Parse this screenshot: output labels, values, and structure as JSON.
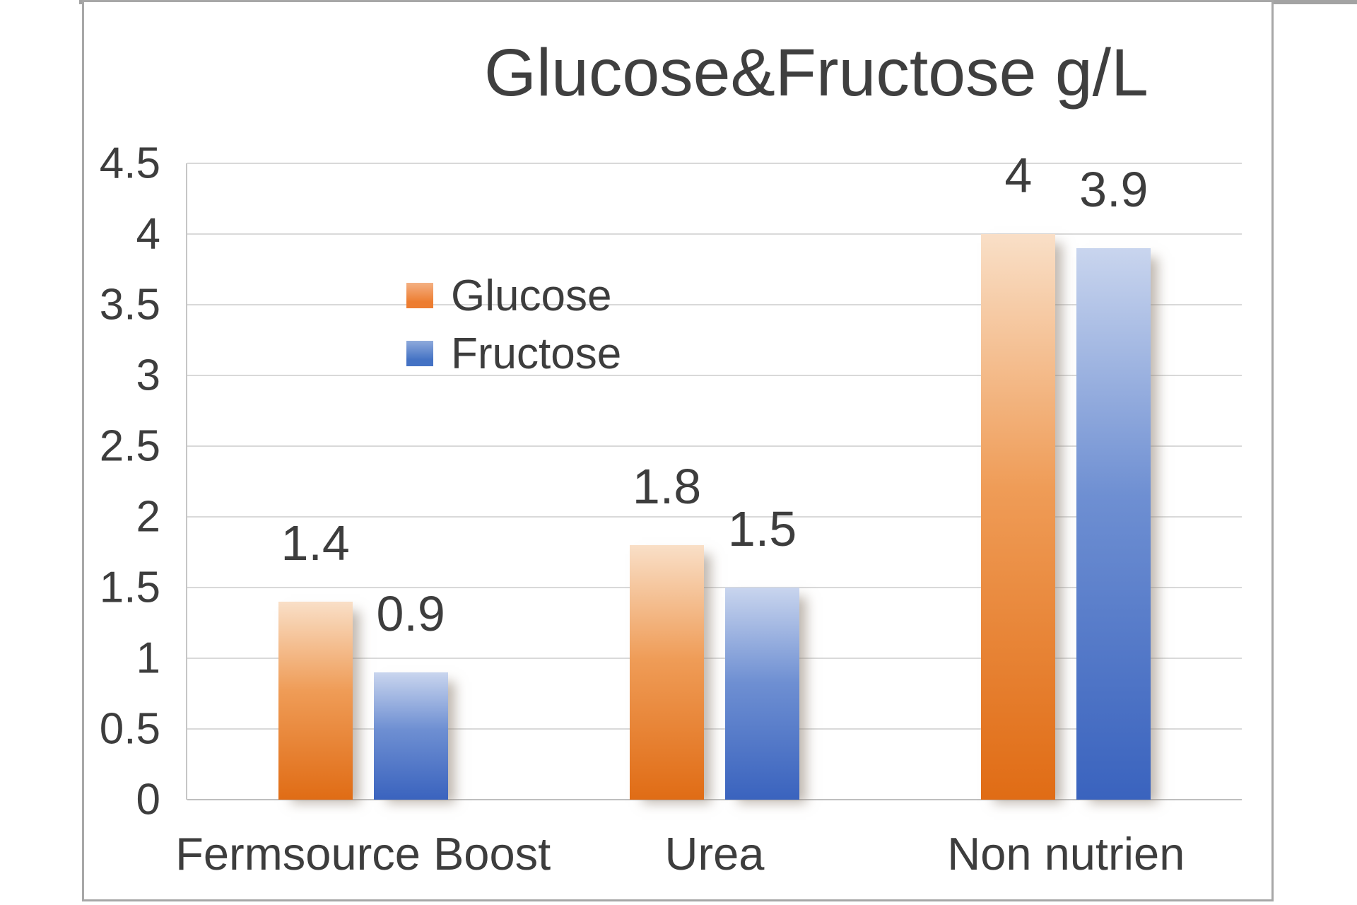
{
  "page": {
    "top_strip_color": "#a3a3a3",
    "frame_border_color": "#a7a7a7",
    "background": "#ffffff"
  },
  "chart_data": {
    "type": "bar",
    "title": "Glucose&Fructose g/L",
    "categories": [
      "Fermsource Boost",
      "Urea",
      "Non nutrien"
    ],
    "series": [
      {
        "name": "Glucose",
        "color": "#ed7d31",
        "gradient": [
          "#f9dfc7",
          "#ef9c57",
          "#e06c15"
        ],
        "values": [
          1.4,
          1.8,
          4
        ],
        "labels": [
          "1.4",
          "1.8",
          "4"
        ]
      },
      {
        "name": "Fructose",
        "color": "#4472c4",
        "gradient": [
          "#c9d5ee",
          "#6e8fd2",
          "#3a63be"
        ],
        "values": [
          0.9,
          1.5,
          3.9
        ],
        "labels": [
          "0.9",
          "1.5",
          "3.9"
        ]
      }
    ],
    "ylim": [
      0,
      4.5
    ],
    "ytick_step": 0.5,
    "yticks": [
      "4.5",
      "4",
      "3.5",
      "3",
      "2.5",
      "2",
      "1.5",
      "1",
      "0.5",
      "0"
    ],
    "grid": true,
    "legend": [
      "Glucose",
      "Fructose"
    ],
    "legend_position": "inside-upper-left",
    "colors": {
      "title_text": "#3f3f3f",
      "label_text": "#3d3d3d",
      "gridline": "#d9d9d9",
      "axis_line": "#bfbfbf"
    }
  }
}
